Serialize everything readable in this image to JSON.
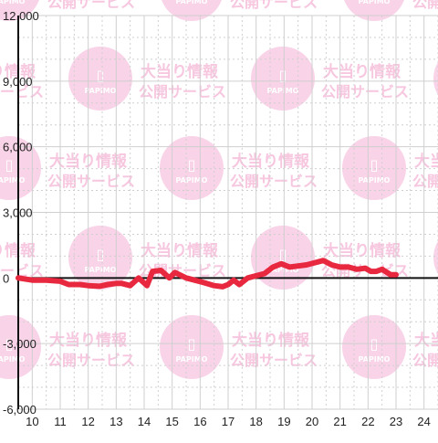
{
  "chart_data": {
    "type": "line",
    "title": "",
    "xlabel": "",
    "ylabel": "",
    "xlim": [
      9.5,
      24.5
    ],
    "ylim": [
      -6000,
      12000
    ],
    "grid": true,
    "x_ticks": [
      10,
      11,
      12,
      13,
      14,
      15,
      16,
      17,
      18,
      19,
      20,
      21,
      22,
      23,
      24
    ],
    "y_ticks": [
      {
        "value": 12000,
        "label": "12,000"
      },
      {
        "value": 9000,
        "label": "9,000"
      },
      {
        "value": 6000,
        "label": "6,000"
      },
      {
        "value": 3000,
        "label": "3,000"
      },
      {
        "value": 0,
        "label": "0"
      },
      {
        "value": -3000,
        "label": "-3,000"
      },
      {
        "value": -6000,
        "label": "-6,000"
      }
    ],
    "series": [
      {
        "color": "#e8283f",
        "x": [
          9.5,
          10.0,
          10.5,
          11.0,
          11.3,
          11.7,
          12.0,
          12.4,
          12.7,
          13.0,
          13.2,
          13.5,
          13.8,
          14.1,
          14.3,
          14.6,
          14.9,
          15.1,
          15.5,
          15.8,
          16.1,
          16.5,
          16.8,
          17.0,
          17.2,
          17.4,
          17.7,
          18.0,
          18.3,
          18.6,
          18.9,
          19.2,
          19.5,
          19.8,
          20.1,
          20.4,
          20.7,
          21.0,
          21.3,
          21.6,
          21.9,
          22.1,
          22.3,
          22.5,
          22.8,
          23.0
        ],
        "y": [
          0,
          -100,
          -100,
          -150,
          -300,
          -300,
          -350,
          -380,
          -300,
          -250,
          -250,
          -350,
          0,
          -350,
          300,
          350,
          0,
          250,
          0,
          -100,
          -200,
          -350,
          -400,
          -300,
          -100,
          -300,
          0,
          100,
          200,
          500,
          650,
          500,
          550,
          600,
          700,
          800,
          600,
          500,
          500,
          400,
          450,
          300,
          300,
          400,
          150,
          150
        ]
      }
    ]
  },
  "watermark": {
    "logo_glyph": "▯",
    "logo_text": "PAPIMO",
    "line1": "大当り情報",
    "line2": "公開サービス"
  }
}
